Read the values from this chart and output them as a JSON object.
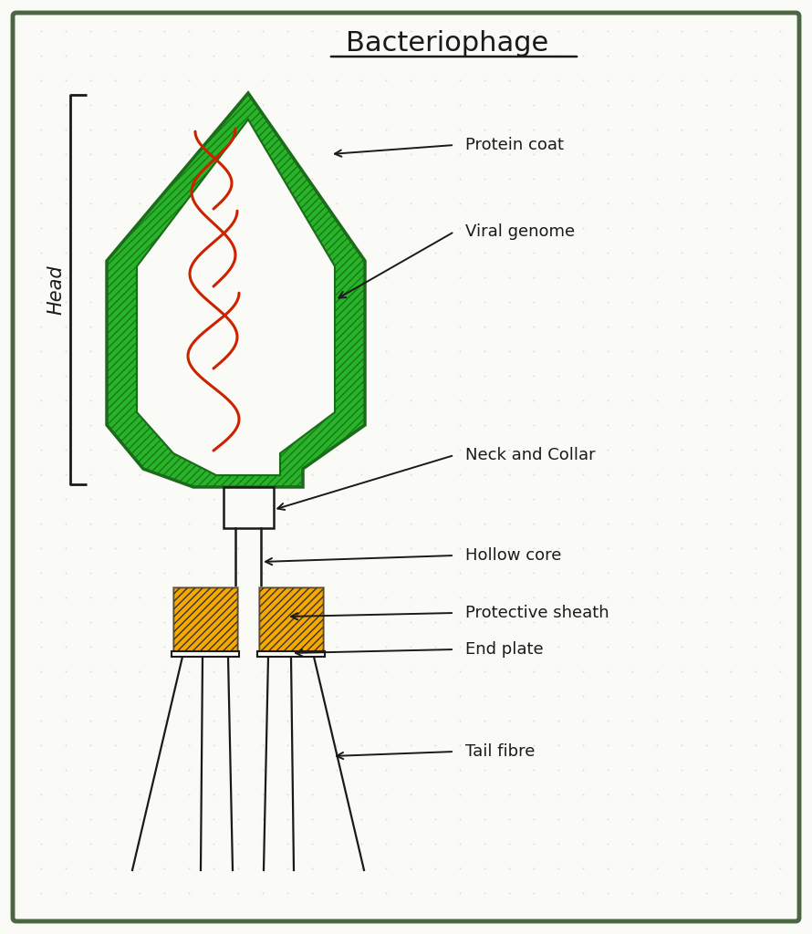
{
  "title": "Bacteriophage",
  "background_color": "#fafaf7",
  "border_color": "#4a6741",
  "labels": {
    "protein_coat": "Protein coat",
    "viral_genome": "Viral genome",
    "neck_collar": "Neck and Collar",
    "hollow_core": "Hollow core",
    "protective_sheath": "Protective sheath",
    "end_plate": "End plate",
    "tail_fibre": "Tail fibre",
    "head": "Head"
  },
  "colors": {
    "green_dark": "#1a6b1a",
    "green_fill": "#28b428",
    "orange_fill": "#f5a800",
    "orange_dark": "#cc8800",
    "red_genome": "#cc2200",
    "black": "#1a1a1a",
    "paper_bg": "#fafaf7",
    "dot": "#cccccc"
  }
}
